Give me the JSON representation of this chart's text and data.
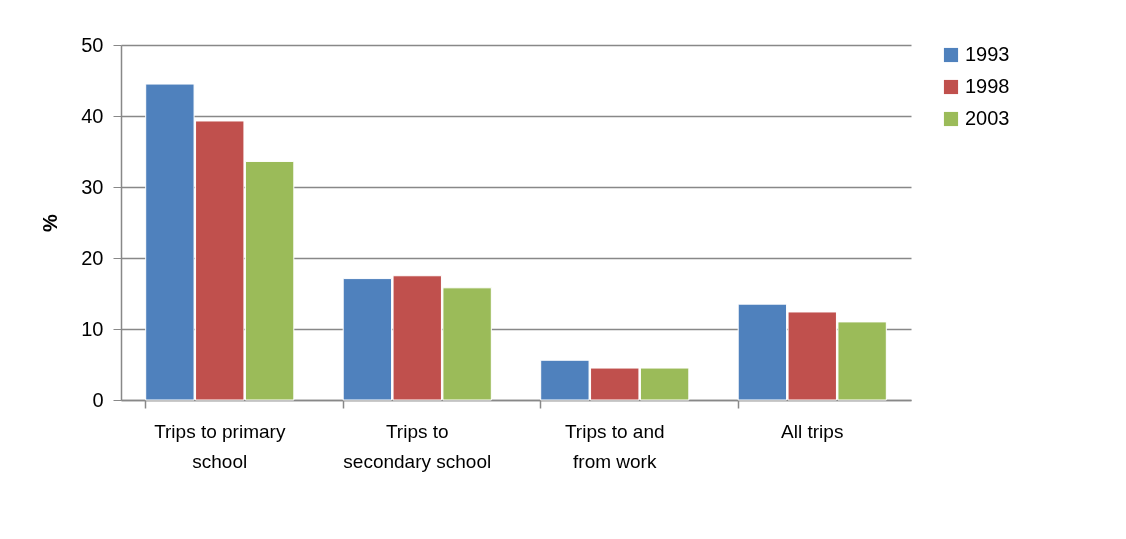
{
  "chart_data": {
    "type": "bar",
    "ylabel": "%",
    "categories": [
      "Trips to primary school",
      "Trips to secondary school",
      "Trips to and from work",
      "All trips"
    ],
    "series": [
      {
        "name": "1993",
        "color": "#4f81bd",
        "values": [
          44.5,
          17.1,
          5.6,
          13.5
        ]
      },
      {
        "name": "1998",
        "color": "#c0504d",
        "values": [
          39.3,
          17.5,
          4.5,
          12.4
        ]
      },
      {
        "name": "2003",
        "color": "#9bbb59",
        "values": [
          33.6,
          15.8,
          4.5,
          11.0
        ]
      }
    ],
    "ylim": [
      0,
      50
    ],
    "yticks": [
      0,
      10,
      20,
      30,
      40,
      50
    ],
    "grid": "y",
    "legend": "right"
  }
}
